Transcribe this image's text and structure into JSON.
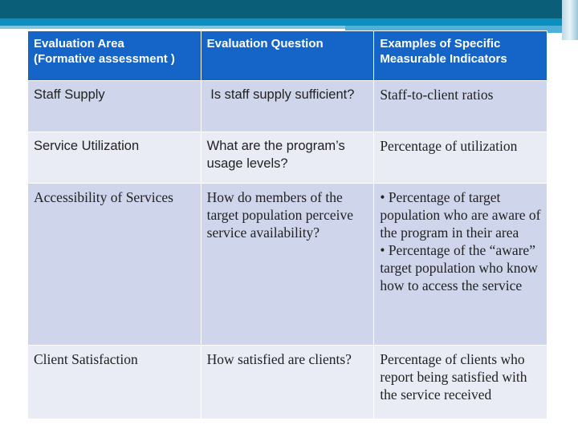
{
  "table": {
    "headers": [
      "Evaluation Area\n(Formative assessment )",
      "Evaluation Question",
      "Examples of Specific Measurable Indicators"
    ],
    "rows": [
      {
        "area": "Staff Supply",
        "question": " Is staff supply sufficient?",
        "indicators": [
          "Staff-to-client ratios"
        ]
      },
      {
        "area": "Service Utilization",
        "question": "What are the program’s usage levels?",
        "indicators": [
          "Percentage of utilization"
        ]
      },
      {
        "area": "Accessibility of Services",
        "question": "How do members of the target population perceive service availability?",
        "indicators": [
          "• Percentage of target population who are aware of the program in their area",
          "• Percentage of the “aware” target population who know how to access the service"
        ]
      },
      {
        "area": "Client Satisfaction",
        "question": "How satisfied are clients?",
        "indicators": [
          "Percentage of clients who report being satisfied with the service received"
        ]
      }
    ]
  },
  "colors": {
    "header": "#1565c8",
    "row_dark": "#cfd5ea",
    "row_light": "#e9ebf5",
    "top_bar": "#0b5e78"
  }
}
